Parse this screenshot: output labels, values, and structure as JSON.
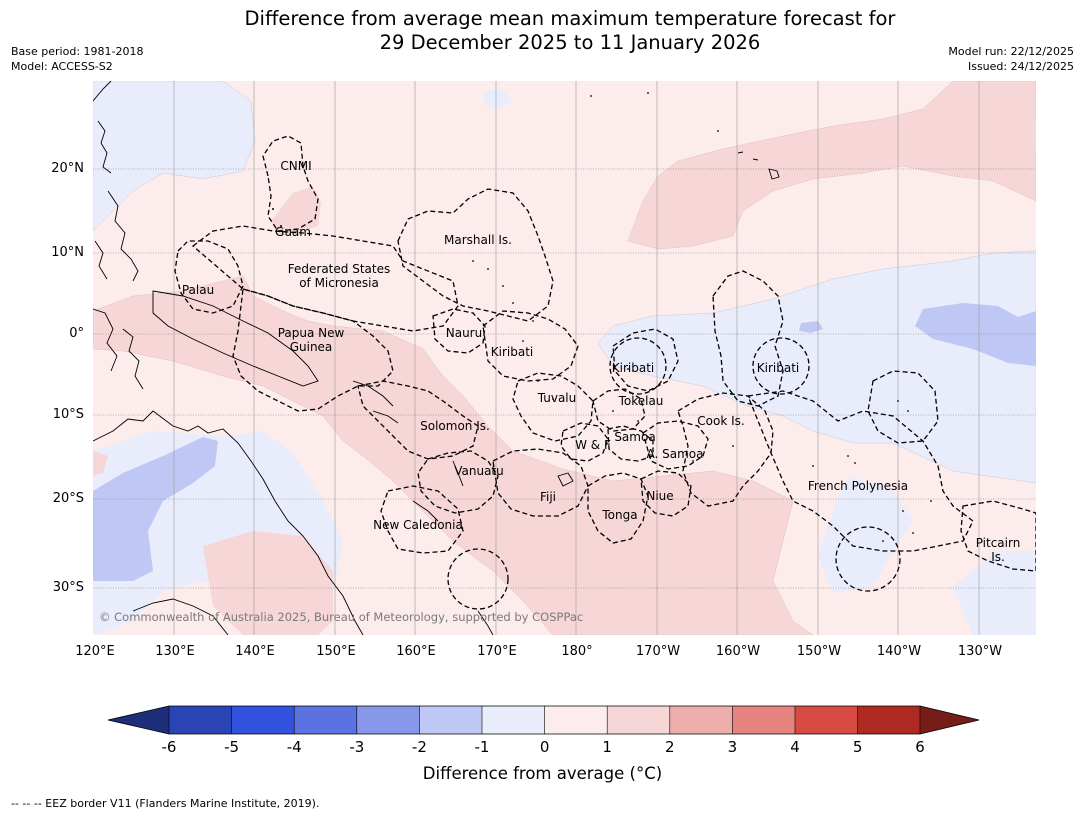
{
  "title_line1": "Difference from average mean maximum temperature forecast for",
  "title_line2": "29 December 2025 to 11 January 2026",
  "meta": {
    "base_period": "Base period: 1981-2018",
    "model": "Model: ACCESS-S2",
    "model_run": "Model run: 22/12/2025",
    "issued": "Issued: 24/12/2025"
  },
  "map": {
    "lat_labels": [
      "20°N",
      "10°N",
      "0°",
      "10°S",
      "20°S",
      "30°S"
    ],
    "lon_labels": [
      "120°E",
      "130°E",
      "140°E",
      "150°E",
      "160°E",
      "170°E",
      "180°",
      "170°W",
      "160°W",
      "150°W",
      "140°W",
      "130°W"
    ],
    "region_labels": {
      "cnmi": "CNMI",
      "guam": "Guam",
      "marshall": "Marshall Is.",
      "fsm_1": "Federated States",
      "fsm_2": "of Micronesia",
      "palau": "Palau",
      "png_1": "Papua New",
      "png_2": "Guinea",
      "nauru": "Nauru",
      "kiribati_west": "Kiribati",
      "kiribati_central": "Kiribati",
      "kiribati_east": "Kiribati",
      "tuvalu": "Tuvalu",
      "tokelau": "Tokelau",
      "cook": "Cook Is.",
      "solomon": "Solomon Is.",
      "wf": "W & F",
      "samoa": "Samoa",
      "asamoa": "A. Samoa",
      "vanuatu": "Vanuatu",
      "fiji": "Fiji",
      "niue": "Niue",
      "tonga": "Tonga",
      "newcal": "New Caledonia",
      "frpoly": "French Polynesia",
      "pitcairn_1": "Pitcairn",
      "pitcairn_2": "Is."
    },
    "credit": "© Commonwealth of Australia 2025, Bureau of Meteorology, supported by COSPPac"
  },
  "colorbar": {
    "ticks": [
      "-6",
      "-5",
      "-4",
      "-3",
      "-2",
      "-1",
      "0",
      "1",
      "2",
      "3",
      "4",
      "5",
      "6"
    ],
    "colors": [
      "#1d2e7a",
      "#2a44b6",
      "#3152df",
      "#5b73e2",
      "#8797ea",
      "#bfc8f4",
      "#e9ecfb",
      "#fcecec",
      "#f6d6d6",
      "#edaeab",
      "#e5837f",
      "#d74b42",
      "#ad2921",
      "#771d19"
    ],
    "label": "Difference from average (°C)"
  },
  "footer": "-- -- -- EEZ border V11 (Flanders Marine Institute, 2019)."
}
